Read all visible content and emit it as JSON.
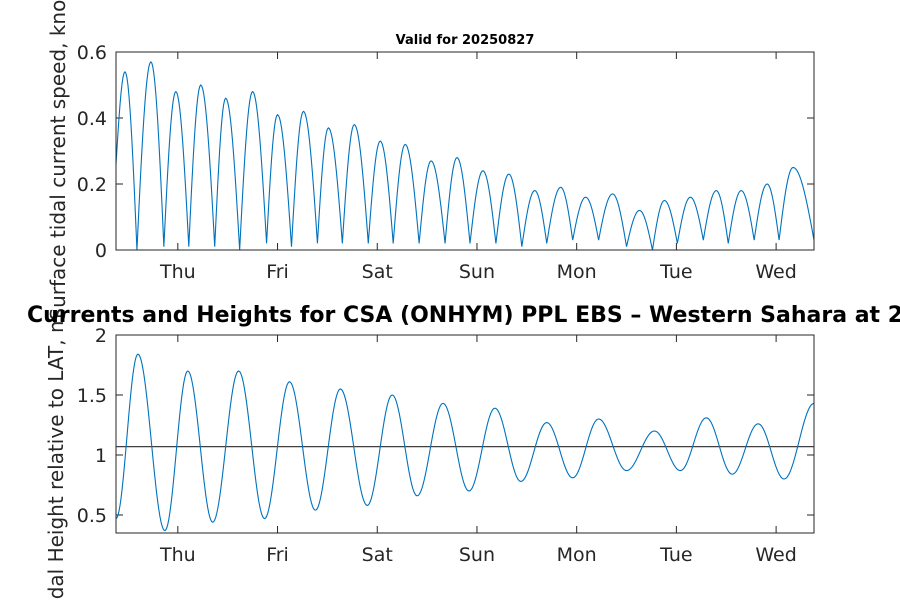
{
  "subtitle": "Valid for 20250827",
  "main_title": "Currents and Heights for CSA (ONHYM) PPL EBS  – Western Sahara at 2",
  "colors": {
    "line": "#0072BD",
    "ref_line": "#404040",
    "axis": "#262626"
  },
  "chart_data": [
    {
      "type": "line",
      "name": "current",
      "ylabel": "Surface tidal current speed, knots",
      "ylim": [
        0,
        0.6
      ],
      "yticks": [
        0,
        0.2,
        0.4,
        0.6
      ],
      "ytick_labels": [
        "0",
        "0.2",
        "0.4",
        "0.6"
      ],
      "xlim": [
        -0.62,
        6.38
      ],
      "xticks": [
        0,
        1,
        2,
        3,
        4,
        5,
        6
      ],
      "xtick_labels": [
        "Thu",
        "Fri",
        "Sat",
        "Sun",
        "Mon",
        "Tue",
        "Wed"
      ],
      "x_units": "days from Thu 00:00",
      "sample_step": 0.01,
      "peaks": [
        {
          "x": -0.53,
          "y": 0.54
        },
        {
          "x": -0.27,
          "y": 0.57
        },
        {
          "x": -0.02,
          "y": 0.48
        },
        {
          "x": 0.23,
          "y": 0.5
        },
        {
          "x": 0.48,
          "y": 0.46
        },
        {
          "x": 0.75,
          "y": 0.48
        },
        {
          "x": 1.0,
          "y": 0.41
        },
        {
          "x": 1.26,
          "y": 0.42
        },
        {
          "x": 1.51,
          "y": 0.37
        },
        {
          "x": 1.77,
          "y": 0.38
        },
        {
          "x": 2.03,
          "y": 0.33
        },
        {
          "x": 2.28,
          "y": 0.32
        },
        {
          "x": 2.54,
          "y": 0.27
        },
        {
          "x": 2.8,
          "y": 0.28
        },
        {
          "x": 3.06,
          "y": 0.24
        },
        {
          "x": 3.32,
          "y": 0.23
        },
        {
          "x": 3.58,
          "y": 0.18
        },
        {
          "x": 3.84,
          "y": 0.19
        },
        {
          "x": 4.09,
          "y": 0.16
        },
        {
          "x": 4.36,
          "y": 0.17
        },
        {
          "x": 4.63,
          "y": 0.12
        },
        {
          "x": 4.88,
          "y": 0.15
        },
        {
          "x": 5.14,
          "y": 0.16
        },
        {
          "x": 5.4,
          "y": 0.18
        },
        {
          "x": 5.65,
          "y": 0.18
        },
        {
          "x": 5.91,
          "y": 0.2
        },
        {
          "x": 6.17,
          "y": 0.25
        }
      ],
      "troughs": [
        {
          "x": -0.62,
          "y": 0.26
        },
        {
          "x": -0.41,
          "y": 0.0
        },
        {
          "x": -0.14,
          "y": 0.01
        },
        {
          "x": 0.11,
          "y": 0.01
        },
        {
          "x": 0.37,
          "y": 0.01
        },
        {
          "x": 0.62,
          "y": 0.0
        },
        {
          "x": 0.89,
          "y": 0.02
        },
        {
          "x": 1.14,
          "y": 0.01
        },
        {
          "x": 1.4,
          "y": 0.02
        },
        {
          "x": 1.65,
          "y": 0.02
        },
        {
          "x": 1.91,
          "y": 0.02
        },
        {
          "x": 2.16,
          "y": 0.02
        },
        {
          "x": 2.42,
          "y": 0.02
        },
        {
          "x": 2.68,
          "y": 0.02
        },
        {
          "x": 2.93,
          "y": 0.02
        },
        {
          "x": 3.19,
          "y": 0.02
        },
        {
          "x": 3.45,
          "y": 0.01
        },
        {
          "x": 3.7,
          "y": 0.02
        },
        {
          "x": 3.96,
          "y": 0.03
        },
        {
          "x": 4.22,
          "y": 0.03
        },
        {
          "x": 4.5,
          "y": 0.01
        },
        {
          "x": 4.76,
          "y": 0.0
        },
        {
          "x": 5.01,
          "y": 0.02
        },
        {
          "x": 5.27,
          "y": 0.03
        },
        {
          "x": 5.52,
          "y": 0.02
        },
        {
          "x": 5.78,
          "y": 0.03
        },
        {
          "x": 6.03,
          "y": 0.03
        },
        {
          "x": 6.38,
          "y": 0.03
        }
      ]
    },
    {
      "type": "line",
      "name": "height",
      "ylabel": "Tidal Height relative to LAT, m",
      "ylim": [
        0.35,
        2
      ],
      "yticks": [
        0.5,
        1,
        1.5,
        2
      ],
      "ytick_labels": [
        "0.5",
        "1",
        "1.5",
        "2"
      ],
      "xlim": [
        -0.62,
        6.38
      ],
      "xticks": [
        0,
        1,
        2,
        3,
        4,
        5,
        6
      ],
      "xtick_labels": [
        "Thu",
        "Fri",
        "Sat",
        "Sun",
        "Mon",
        "Tue",
        "Wed"
      ],
      "x_units": "days from Thu 00:00",
      "sample_step": 0.01,
      "reference_line": 1.07,
      "extrema": [
        {
          "x": -0.62,
          "y": 0.47
        },
        {
          "x": -0.4,
          "y": 1.84
        },
        {
          "x": -0.13,
          "y": 0.37
        },
        {
          "x": 0.1,
          "y": 1.7
        },
        {
          "x": 0.35,
          "y": 0.44
        },
        {
          "x": 0.61,
          "y": 1.7
        },
        {
          "x": 0.87,
          "y": 0.47
        },
        {
          "x": 1.12,
          "y": 1.61
        },
        {
          "x": 1.38,
          "y": 0.54
        },
        {
          "x": 1.63,
          "y": 1.55
        },
        {
          "x": 1.9,
          "y": 0.58
        },
        {
          "x": 2.15,
          "y": 1.5
        },
        {
          "x": 2.4,
          "y": 0.66
        },
        {
          "x": 2.66,
          "y": 1.43
        },
        {
          "x": 2.92,
          "y": 0.7
        },
        {
          "x": 3.18,
          "y": 1.39
        },
        {
          "x": 3.44,
          "y": 0.78
        },
        {
          "x": 3.7,
          "y": 1.27
        },
        {
          "x": 3.96,
          "y": 0.81
        },
        {
          "x": 4.22,
          "y": 1.3
        },
        {
          "x": 4.5,
          "y": 0.87
        },
        {
          "x": 4.78,
          "y": 1.2
        },
        {
          "x": 5.04,
          "y": 0.87
        },
        {
          "x": 5.3,
          "y": 1.31
        },
        {
          "x": 5.56,
          "y": 0.84
        },
        {
          "x": 5.82,
          "y": 1.26
        },
        {
          "x": 6.08,
          "y": 0.8
        },
        {
          "x": 6.38,
          "y": 1.43
        }
      ]
    }
  ]
}
